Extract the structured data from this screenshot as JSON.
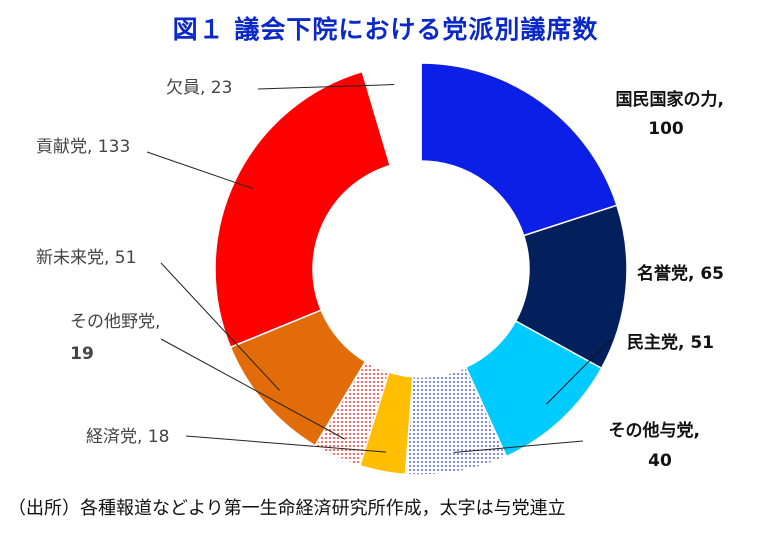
{
  "title": "図１ 議会下院における党派別議席数",
  "source": "（出所）各種報道などより第一生命経済研究所作成，太字は与党連立",
  "chart_data": {
    "type": "donut",
    "title": "図１ 議会下院における党派別議席数",
    "series": [
      {
        "name": "国民国家の力",
        "value": 100,
        "color": "#0b1fe6",
        "coalition": true,
        "pattern": "solid"
      },
      {
        "name": "名誉党",
        "value": 65,
        "color": "#03205c",
        "coalition": true,
        "pattern": "solid"
      },
      {
        "name": "民主党",
        "value": 51,
        "color": "#00cbff",
        "coalition": true,
        "pattern": "solid"
      },
      {
        "name": "その他与党",
        "value": 40,
        "color": "#2a3adf",
        "coalition": true,
        "pattern": "dots-blue"
      },
      {
        "name": "経済党",
        "value": 18,
        "color": "#ffbf00",
        "coalition": false,
        "pattern": "solid"
      },
      {
        "name": "その他野党",
        "value": 19,
        "color": "#ff0000",
        "coalition": false,
        "pattern": "dots-red"
      },
      {
        "name": "新未来党",
        "value": 51,
        "color": "#e36c0a",
        "coalition": false,
        "pattern": "solid"
      },
      {
        "name": "貢献党",
        "value": 133,
        "color": "#ff0000",
        "coalition": false,
        "pattern": "solid"
      },
      {
        "name": "欠員",
        "value": 23,
        "color": "#ffffff",
        "coalition": false,
        "pattern": "solid"
      }
    ],
    "labels": [
      {
        "line1": "国民国家の力,",
        "line2": "100"
      },
      {
        "line1": "名誉党, 65",
        "line2": ""
      },
      {
        "line1": "民主党, 51",
        "line2": ""
      },
      {
        "line1": "その他与党,",
        "line2": "40"
      },
      {
        "line1": "経済党, 18",
        "line2": ""
      },
      {
        "line1": "その他野党,",
        "line2": "19"
      },
      {
        "line1": "新未来党, 51",
        "line2": ""
      },
      {
        "line1": "貢献党, 133",
        "line2": ""
      },
      {
        "line1": "欠員, 23",
        "line2": ""
      }
    ],
    "legend": "none"
  }
}
